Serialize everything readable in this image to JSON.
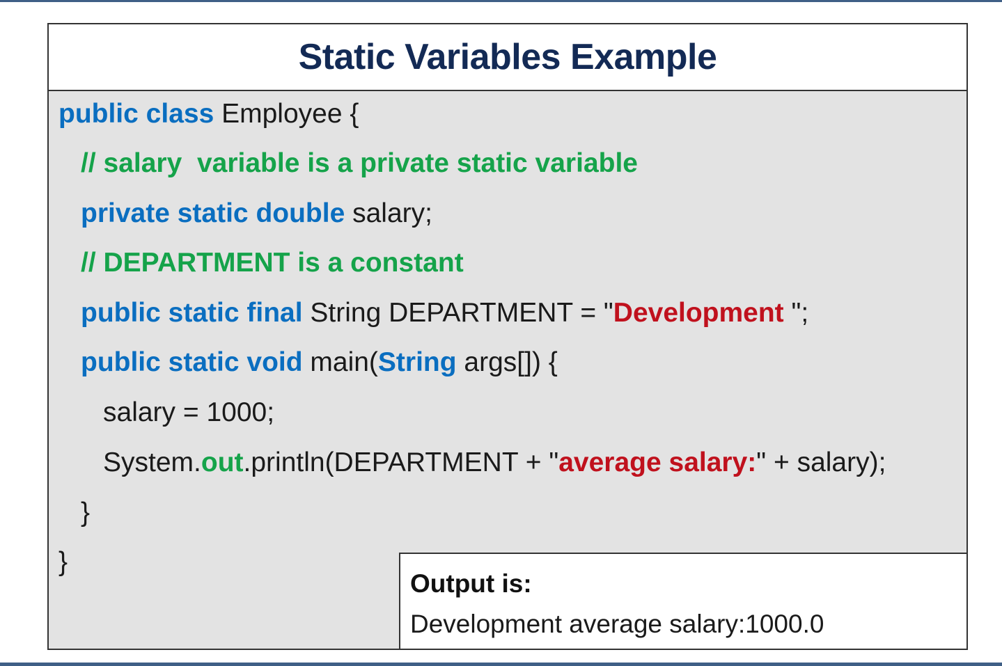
{
  "title": "Static Variables Example",
  "code": {
    "line1": {
      "kw": "public class",
      "rest": " Employee {"
    },
    "line2": {
      "comment": "// salary  variable is a private static variable"
    },
    "line3": {
      "kw": "private static double",
      "rest": " salary;"
    },
    "line4": {
      "comment": "// DEPARTMENT is a constant"
    },
    "line5": {
      "kw": "public static final",
      "mid": " String DEPARTMENT = \"",
      "str": "Development ",
      "end": "\";"
    },
    "line6": {
      "kw1": "public static void",
      "mid": " main(",
      "kw2": "String",
      "rest": " args[]) {"
    },
    "line7": {
      "text": "salary = 1000;"
    },
    "line8": {
      "pre": "System.",
      "out": "out",
      "mid": ".println(DEPARTMENT + \"",
      "str": "average salary:",
      "end": "\" + salary);"
    },
    "line9": {
      "text": "}"
    },
    "line10": {
      "text": "}"
    }
  },
  "output": {
    "heading": "Output is:",
    "value": "Development average salary:1000.0"
  },
  "colors": {
    "title": "#132a55",
    "keyword": "#0a6ec0",
    "comment": "#15a34a",
    "string": "#c0111d",
    "panel_background": "#e3e3e3",
    "rule": "#3f5f86"
  }
}
